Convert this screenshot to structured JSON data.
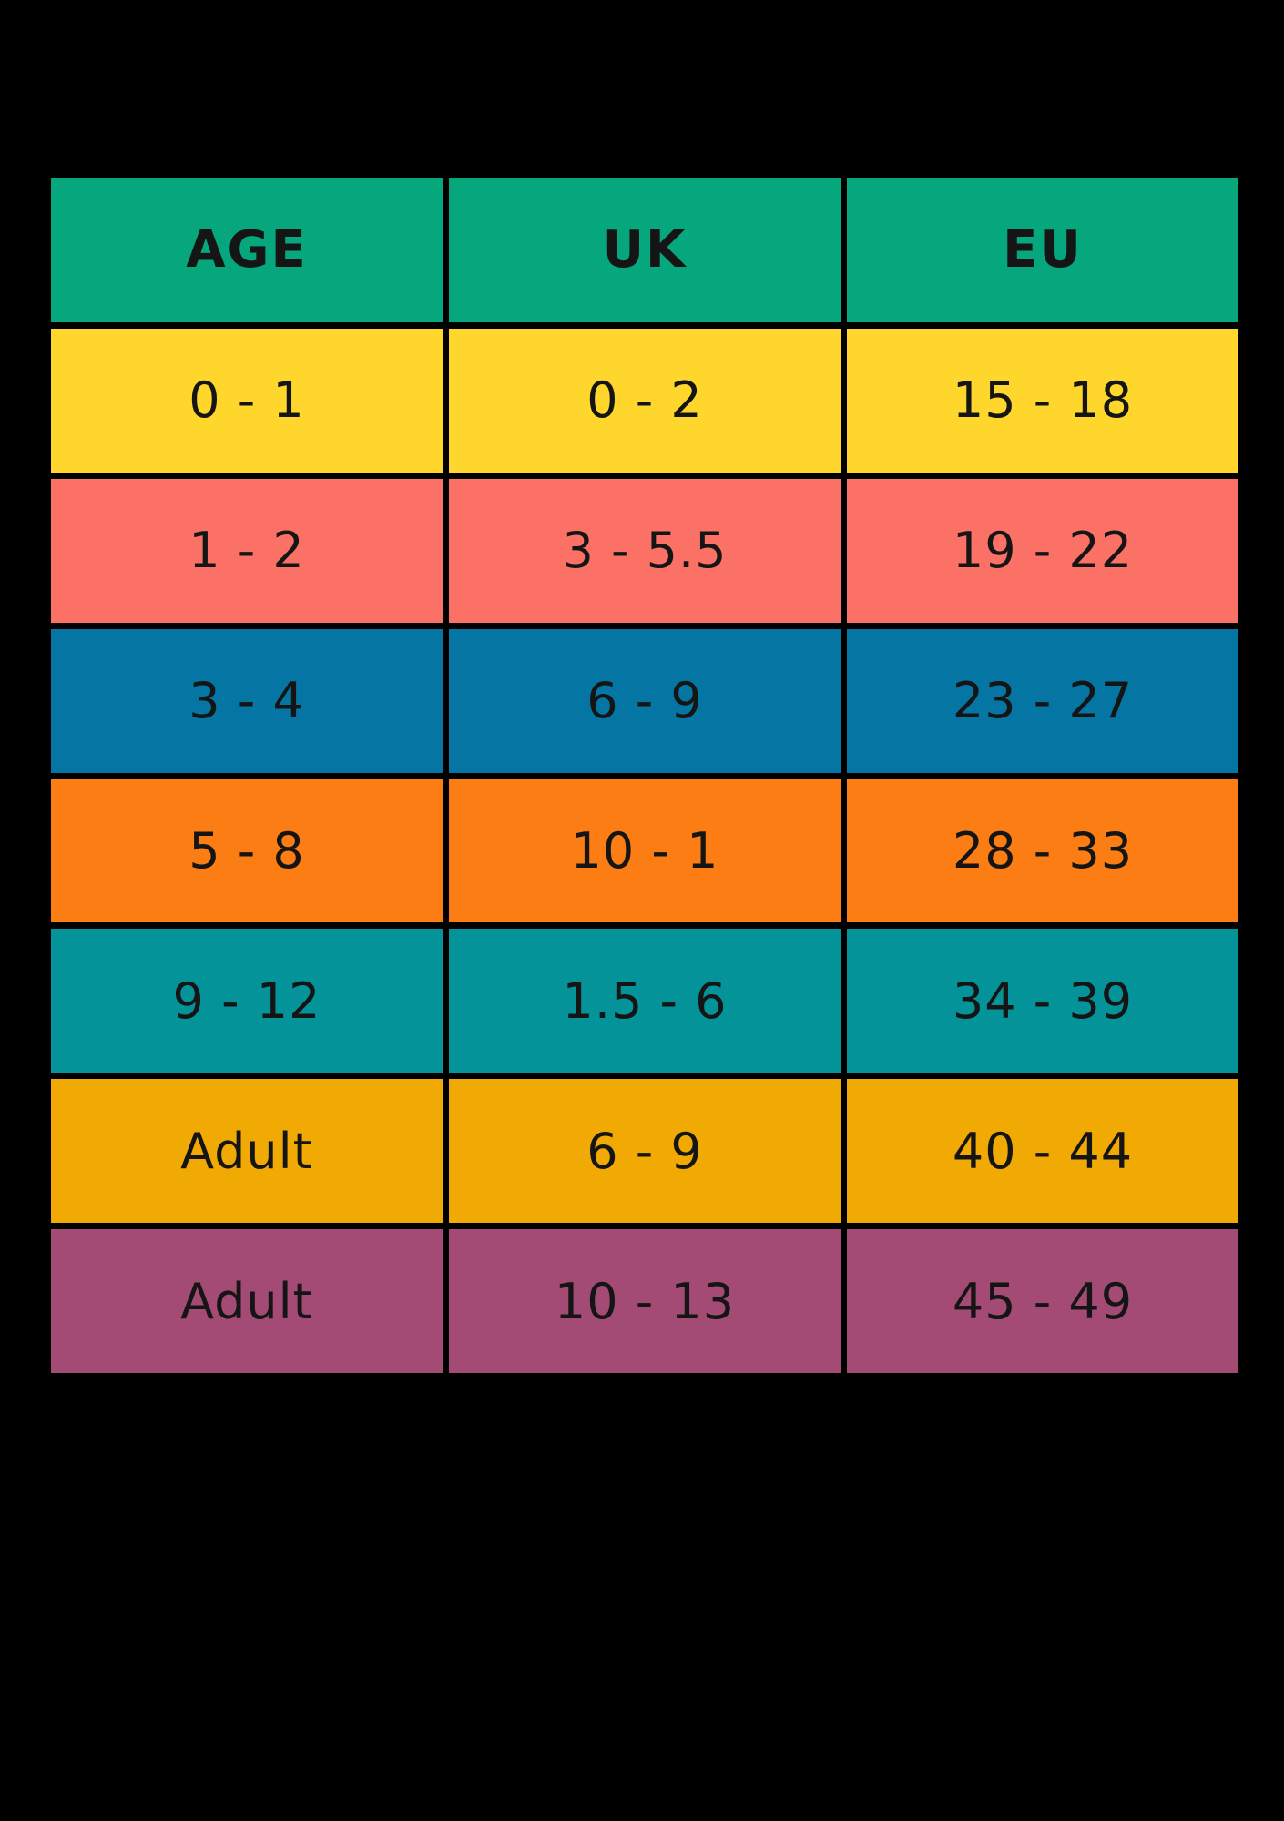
{
  "chart_data": {
    "type": "table",
    "columns": [
      "AGE",
      "UK",
      "EU"
    ],
    "rows": [
      [
        "0 - 1",
        "0 - 2",
        "15 - 18"
      ],
      [
        "1 - 2",
        "3 - 5.5",
        "19 - 22"
      ],
      [
        "3 - 4",
        "6 - 9",
        "23 - 27"
      ],
      [
        "5 - 8",
        "10 - 1",
        "28 - 33"
      ],
      [
        "9 - 12",
        "1.5 - 6",
        "34 - 39"
      ],
      [
        "Adult",
        "6 - 9",
        "40 - 44"
      ],
      [
        "Adult",
        "10 - 13",
        "45 - 49"
      ]
    ],
    "header_color": "#06A77D",
    "row_colors": [
      "#FFD62B",
      "#FC7166",
      "#0575A4",
      "#FB7D13",
      "#05939A",
      "#F1A904",
      "#A34A75"
    ],
    "text_color": "#151515",
    "background": "#000000",
    "grid_color": "#000000",
    "legend_position": "none",
    "title": ""
  }
}
